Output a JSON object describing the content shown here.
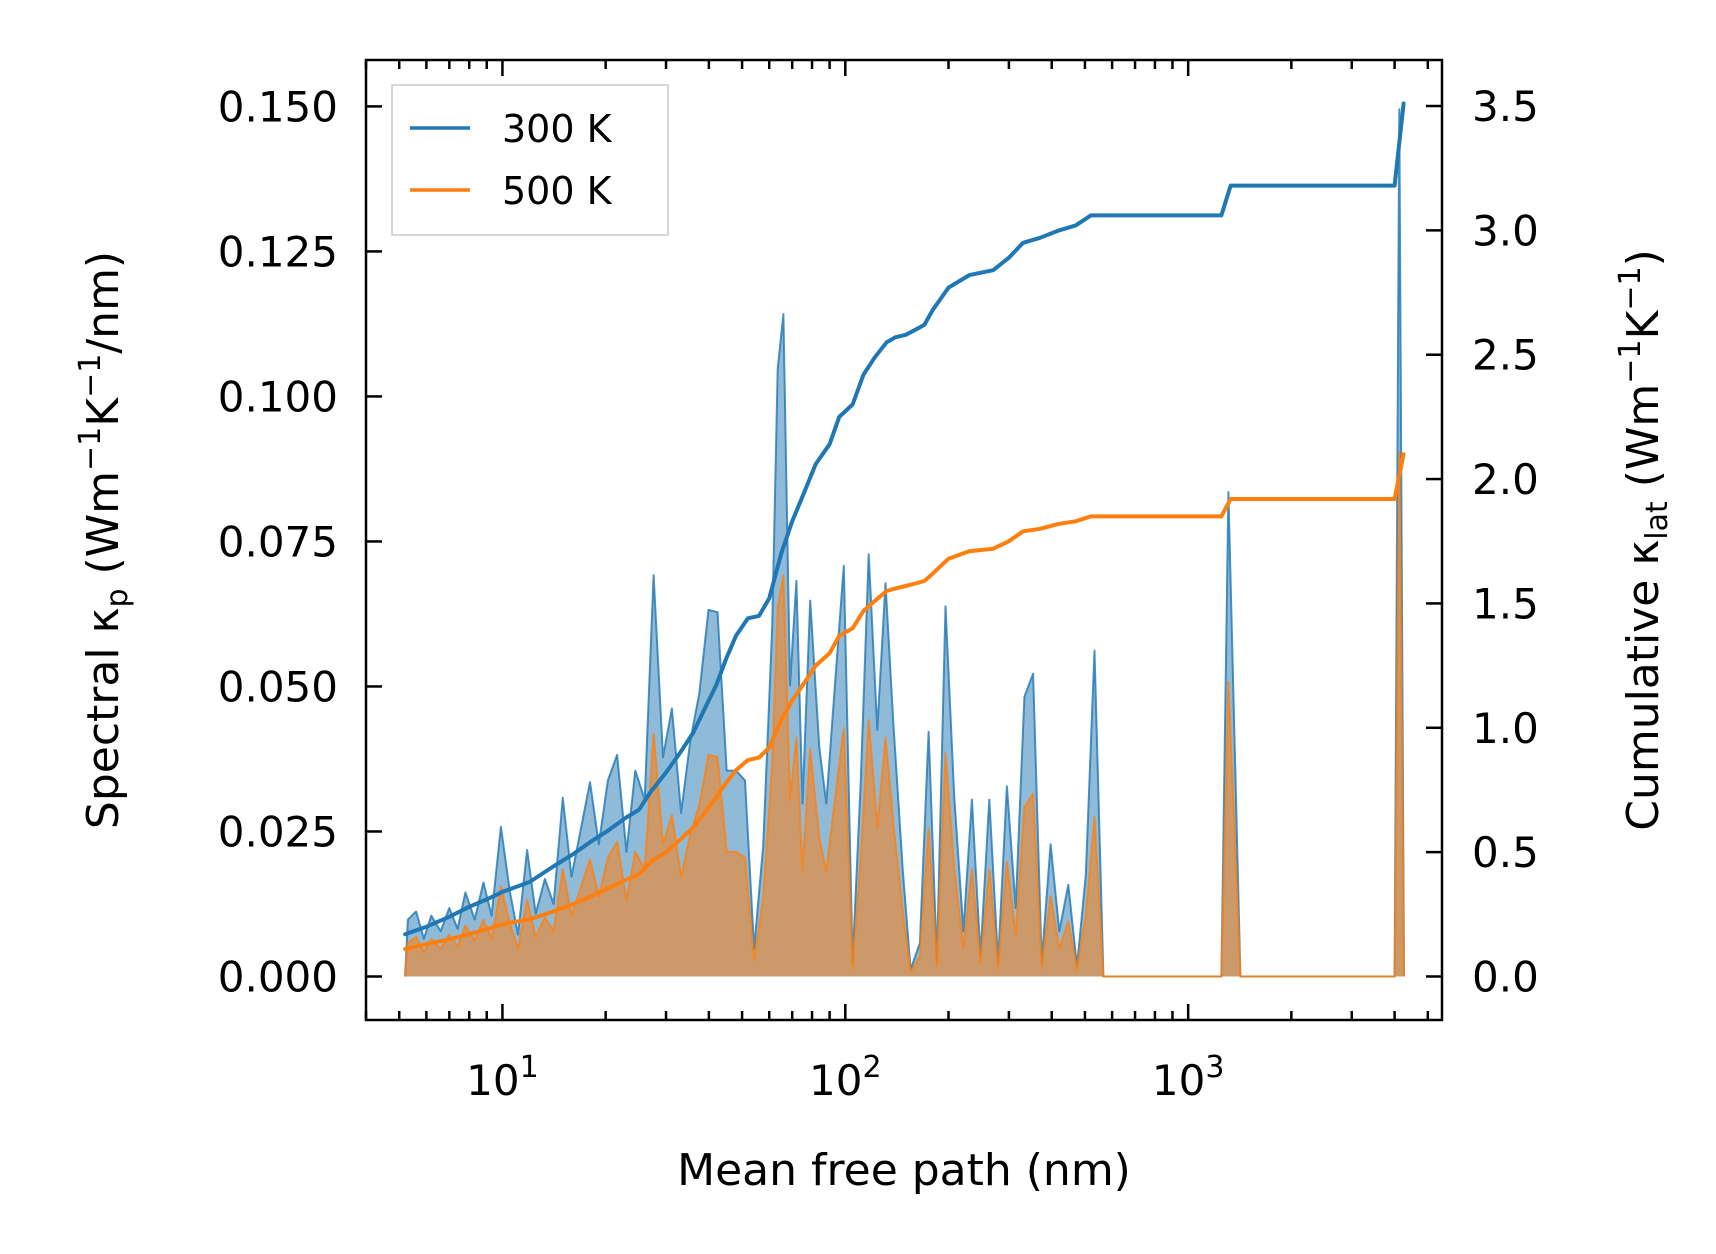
{
  "chart_data": {
    "type": "line+area",
    "xscale": "log",
    "xlim": [
      4.0,
      5500
    ],
    "ylim_left": [
      -0.0075,
      0.158
    ],
    "ylim_right": [
      -0.175,
      3.685
    ],
    "xlabel": "Mean free path (nm)",
    "ylabel_left": {
      "prefix": "Spectral κ",
      "sub": "p",
      "suffix": " (Wm",
      "sup1": "−1",
      "mid": "K",
      "sup2": "−1",
      "end": "/nm)"
    },
    "ylabel_right": {
      "prefix": "Cumulative κ",
      "sub": "lat",
      "suffix": " (Wm",
      "sup1": "−1",
      "mid": "K",
      "sup2": "−1",
      "end": ")"
    },
    "x_ticks": [
      {
        "value": 10,
        "base": "10",
        "exp": "1"
      },
      {
        "value": 100,
        "base": "10",
        "exp": "2"
      },
      {
        "value": 1000,
        "base": "10",
        "exp": "3"
      }
    ],
    "y_left_ticks": [
      {
        "value": 0.0,
        "label": "0.000"
      },
      {
        "value": 0.025,
        "label": "0.025"
      },
      {
        "value": 0.05,
        "label": "0.050"
      },
      {
        "value": 0.075,
        "label": "0.075"
      },
      {
        "value": 0.1,
        "label": "0.100"
      },
      {
        "value": 0.125,
        "label": "0.125"
      },
      {
        "value": 0.15,
        "label": "0.150"
      }
    ],
    "y_right_ticks": [
      {
        "value": 0.0,
        "label": "0.0"
      },
      {
        "value": 0.5,
        "label": "0.5"
      },
      {
        "value": 1.0,
        "label": "1.0"
      },
      {
        "value": 1.5,
        "label": "1.5"
      },
      {
        "value": 2.0,
        "label": "2.0"
      },
      {
        "value": 2.5,
        "label": "2.5"
      },
      {
        "value": 3.0,
        "label": "3.0"
      },
      {
        "value": 3.5,
        "label": "3.5"
      }
    ],
    "legend": {
      "position": "top-left",
      "entries": [
        "300 K",
        "500 K"
      ]
    },
    "series": [
      {
        "name": "300 K",
        "color": "#1f77b4",
        "fill": "#1f77b4",
        "spectral": [
          [
            5.2,
            0.0
          ],
          [
            5.3,
            0.0098
          ],
          [
            5.6,
            0.0112
          ],
          [
            5.9,
            0.0065
          ],
          [
            6.2,
            0.0105
          ],
          [
            6.6,
            0.0078
          ],
          [
            7.0,
            0.0118
          ],
          [
            7.4,
            0.0082
          ],
          [
            7.8,
            0.0145
          ],
          [
            8.3,
            0.0098
          ],
          [
            8.8,
            0.0162
          ],
          [
            9.3,
            0.0105
          ],
          [
            9.9,
            0.0258
          ],
          [
            10.5,
            0.0148
          ],
          [
            11.1,
            0.0072
          ],
          [
            11.8,
            0.0218
          ],
          [
            12.5,
            0.0108
          ],
          [
            13.3,
            0.0168
          ],
          [
            14.1,
            0.0125
          ],
          [
            15.0,
            0.0308
          ],
          [
            15.9,
            0.0172
          ],
          [
            16.9,
            0.0252
          ],
          [
            18.0,
            0.0335
          ],
          [
            19.1,
            0.0228
          ],
          [
            20.3,
            0.0338
          ],
          [
            21.6,
            0.0382
          ],
          [
            23.0,
            0.0215
          ],
          [
            24.4,
            0.0355
          ],
          [
            26.0,
            0.0305
          ],
          [
            27.6,
            0.0692
          ],
          [
            29.4,
            0.0378
          ],
          [
            31.2,
            0.0462
          ],
          [
            33.2,
            0.0282
          ],
          [
            35.3,
            0.0405
          ],
          [
            37.5,
            0.0488
          ],
          [
            39.9,
            0.0632
          ],
          [
            42.4,
            0.0628
          ],
          [
            45.1,
            0.0355
          ],
          [
            48.0,
            0.0355
          ],
          [
            51.0,
            0.0338
          ],
          [
            54.2,
            0.0048
          ],
          [
            57.6,
            0.0225
          ],
          [
            61.2,
            0.0602
          ],
          [
            63.5,
            0.1048
          ],
          [
            66.0,
            0.1142
          ],
          [
            69.0,
            0.0502
          ],
          [
            72.0,
            0.0682
          ],
          [
            75.0,
            0.0298
          ],
          [
            79.0,
            0.0648
          ],
          [
            84.0,
            0.0395
          ],
          [
            88.0,
            0.0298
          ],
          [
            93.0,
            0.0492
          ],
          [
            99.0,
            0.0708
          ],
          [
            105.0,
            0.0025
          ],
          [
            111.0,
            0.0338
          ],
          [
            117.0,
            0.0728
          ],
          [
            124.0,
            0.0425
          ],
          [
            131.0,
            0.0678
          ],
          [
            138.0,
            0.0438
          ],
          [
            147.0,
            0.0185
          ],
          [
            155.0,
            0.0012
          ],
          [
            165.0,
            0.0058
          ],
          [
            175.0,
            0.0422
          ],
          [
            185.0,
            0.0028
          ],
          [
            196.0,
            0.0638
          ],
          [
            208.0,
            0.0308
          ],
          [
            221.0,
            0.0078
          ],
          [
            234.0,
            0.0305
          ],
          [
            248.0,
            0.0035
          ],
          [
            263.0,
            0.0305
          ],
          [
            279.0,
            0.0025
          ],
          [
            296.0,
            0.0328
          ],
          [
            314.0,
            0.0118
          ],
          [
            333.0,
            0.0482
          ],
          [
            353.0,
            0.0522
          ],
          [
            374.0,
            0.0025
          ],
          [
            397.0,
            0.0228
          ],
          [
            421.0,
            0.0078
          ],
          [
            447.0,
            0.0158
          ],
          [
            474.0,
            0.0018
          ],
          [
            503.0,
            0.0175
          ],
          [
            533.0,
            0.0562
          ],
          [
            566.0,
            0.0
          ],
          [
            1250.0,
            0.0
          ],
          [
            1310.0,
            0.0835
          ],
          [
            1420.0,
            0.0
          ],
          [
            4000.0,
            0.0
          ],
          [
            4130.0,
            0.1495
          ],
          [
            4260.0,
            0.0
          ]
        ],
        "cumulative": [
          [
            5.2,
            0.17
          ],
          [
            6.0,
            0.2
          ],
          [
            7.0,
            0.24
          ],
          [
            8.0,
            0.28
          ],
          [
            9.0,
            0.31
          ],
          [
            10.0,
            0.34
          ],
          [
            12.0,
            0.38
          ],
          [
            14.0,
            0.44
          ],
          [
            16.0,
            0.49
          ],
          [
            18.0,
            0.54
          ],
          [
            20.0,
            0.58
          ],
          [
            23.0,
            0.64
          ],
          [
            25.0,
            0.67
          ],
          [
            27.0,
            0.74
          ],
          [
            30.0,
            0.82
          ],
          [
            33.0,
            0.9
          ],
          [
            36.0,
            0.98
          ],
          [
            39.0,
            1.08
          ],
          [
            42.0,
            1.17
          ],
          [
            45.0,
            1.28
          ],
          [
            48.0,
            1.37
          ],
          [
            52.0,
            1.44
          ],
          [
            56.0,
            1.45
          ],
          [
            60.0,
            1.52
          ],
          [
            65.0,
            1.7
          ],
          [
            70.0,
            1.83
          ],
          [
            75.0,
            1.93
          ],
          [
            82.0,
            2.06
          ],
          [
            90.0,
            2.14
          ],
          [
            96.0,
            2.25
          ],
          [
            105.0,
            2.3
          ],
          [
            113.0,
            2.42
          ],
          [
            122.0,
            2.49
          ],
          [
            132.0,
            2.55
          ],
          [
            140.0,
            2.57
          ],
          [
            150.0,
            2.58
          ],
          [
            160.0,
            2.6
          ],
          [
            170.0,
            2.62
          ],
          [
            180.0,
            2.68
          ],
          [
            200.0,
            2.77
          ],
          [
            230.0,
            2.82
          ],
          [
            270.0,
            2.84
          ],
          [
            300.0,
            2.89
          ],
          [
            330.0,
            2.95
          ],
          [
            370.0,
            2.97
          ],
          [
            420.0,
            3.0
          ],
          [
            470.0,
            3.02
          ],
          [
            520.0,
            3.06
          ],
          [
            600.0,
            3.06
          ],
          [
            1250.0,
            3.06
          ],
          [
            1330.0,
            3.18
          ],
          [
            1450.0,
            3.18
          ],
          [
            4000.0,
            3.18
          ],
          [
            4250.0,
            3.51
          ]
        ]
      },
      {
        "name": "500 K",
        "color": "#ff7f0e",
        "fill": "#ff7f0e",
        "spectral": [
          [
            5.2,
            0.0
          ],
          [
            5.3,
            0.0058
          ],
          [
            5.6,
            0.0068
          ],
          [
            5.9,
            0.0042
          ],
          [
            6.2,
            0.0065
          ],
          [
            6.6,
            0.0048
          ],
          [
            7.0,
            0.0072
          ],
          [
            7.4,
            0.0052
          ],
          [
            7.8,
            0.0088
          ],
          [
            8.3,
            0.0062
          ],
          [
            8.8,
            0.0098
          ],
          [
            9.3,
            0.0065
          ],
          [
            9.9,
            0.0155
          ],
          [
            10.5,
            0.0092
          ],
          [
            11.1,
            0.0048
          ],
          [
            11.8,
            0.0132
          ],
          [
            12.5,
            0.0068
          ],
          [
            13.3,
            0.0102
          ],
          [
            14.1,
            0.0078
          ],
          [
            15.0,
            0.0185
          ],
          [
            15.9,
            0.0105
          ],
          [
            16.9,
            0.0152
          ],
          [
            18.0,
            0.0202
          ],
          [
            19.1,
            0.0138
          ],
          [
            20.3,
            0.0205
          ],
          [
            21.6,
            0.0232
          ],
          [
            23.0,
            0.0132
          ],
          [
            24.4,
            0.0215
          ],
          [
            26.0,
            0.0185
          ],
          [
            27.6,
            0.0418
          ],
          [
            29.4,
            0.0228
          ],
          [
            31.2,
            0.0278
          ],
          [
            33.2,
            0.0172
          ],
          [
            35.3,
            0.0245
          ],
          [
            37.5,
            0.0295
          ],
          [
            39.9,
            0.0382
          ],
          [
            42.4,
            0.0378
          ],
          [
            45.1,
            0.0215
          ],
          [
            48.0,
            0.0215
          ],
          [
            51.0,
            0.0205
          ],
          [
            54.2,
            0.0028
          ],
          [
            57.6,
            0.0135
          ],
          [
            61.2,
            0.0365
          ],
          [
            63.5,
            0.0635
          ],
          [
            66.0,
            0.0692
          ],
          [
            69.0,
            0.0305
          ],
          [
            72.0,
            0.0412
          ],
          [
            75.0,
            0.0182
          ],
          [
            79.0,
            0.0392
          ],
          [
            84.0,
            0.0238
          ],
          [
            88.0,
            0.0182
          ],
          [
            93.0,
            0.0298
          ],
          [
            99.0,
            0.0428
          ],
          [
            105.0,
            0.0015
          ],
          [
            111.0,
            0.0205
          ],
          [
            117.0,
            0.0442
          ],
          [
            124.0,
            0.0258
          ],
          [
            131.0,
            0.0412
          ],
          [
            138.0,
            0.0265
          ],
          [
            147.0,
            0.0112
          ],
          [
            155.0,
            0.0008
          ],
          [
            165.0,
            0.0035
          ],
          [
            175.0,
            0.0255
          ],
          [
            185.0,
            0.0018
          ],
          [
            196.0,
            0.0385
          ],
          [
            208.0,
            0.0185
          ],
          [
            221.0,
            0.0048
          ],
          [
            234.0,
            0.0185
          ],
          [
            248.0,
            0.0022
          ],
          [
            263.0,
            0.0185
          ],
          [
            279.0,
            0.0015
          ],
          [
            296.0,
            0.0198
          ],
          [
            314.0,
            0.0072
          ],
          [
            333.0,
            0.0292
          ],
          [
            353.0,
            0.0315
          ],
          [
            374.0,
            0.0015
          ],
          [
            397.0,
            0.0138
          ],
          [
            421.0,
            0.0048
          ],
          [
            447.0,
            0.0095
          ],
          [
            474.0,
            0.0012
          ],
          [
            503.0,
            0.0105
          ],
          [
            533.0,
            0.0275
          ],
          [
            566.0,
            0.0
          ],
          [
            1250.0,
            0.0
          ],
          [
            1310.0,
            0.0508
          ],
          [
            1420.0,
            0.0
          ],
          [
            4000.0,
            0.0
          ],
          [
            4130.0,
            0.0905
          ],
          [
            4260.0,
            0.0
          ]
        ],
        "cumulative": [
          [
            5.2,
            0.11
          ],
          [
            6.0,
            0.13
          ],
          [
            7.0,
            0.15
          ],
          [
            8.0,
            0.17
          ],
          [
            9.0,
            0.19
          ],
          [
            10.0,
            0.21
          ],
          [
            12.0,
            0.23
          ],
          [
            14.0,
            0.26
          ],
          [
            16.0,
            0.29
          ],
          [
            18.0,
            0.32
          ],
          [
            20.0,
            0.35
          ],
          [
            23.0,
            0.39
          ],
          [
            25.0,
            0.41
          ],
          [
            27.0,
            0.46
          ],
          [
            30.0,
            0.5
          ],
          [
            33.0,
            0.55
          ],
          [
            36.0,
            0.6
          ],
          [
            39.0,
            0.66
          ],
          [
            42.0,
            0.72
          ],
          [
            45.0,
            0.78
          ],
          [
            48.0,
            0.83
          ],
          [
            52.0,
            0.87
          ],
          [
            56.0,
            0.88
          ],
          [
            60.0,
            0.92
          ],
          [
            65.0,
            1.03
          ],
          [
            70.0,
            1.11
          ],
          [
            75.0,
            1.17
          ],
          [
            82.0,
            1.25
          ],
          [
            90.0,
            1.3
          ],
          [
            96.0,
            1.37
          ],
          [
            105.0,
            1.4
          ],
          [
            113.0,
            1.47
          ],
          [
            122.0,
            1.51
          ],
          [
            132.0,
            1.55
          ],
          [
            140.0,
            1.56
          ],
          [
            150.0,
            1.57
          ],
          [
            160.0,
            1.58
          ],
          [
            170.0,
            1.59
          ],
          [
            180.0,
            1.62
          ],
          [
            200.0,
            1.68
          ],
          [
            230.0,
            1.71
          ],
          [
            270.0,
            1.72
          ],
          [
            300.0,
            1.75
          ],
          [
            330.0,
            1.79
          ],
          [
            370.0,
            1.8
          ],
          [
            420.0,
            1.82
          ],
          [
            470.0,
            1.83
          ],
          [
            520.0,
            1.85
          ],
          [
            600.0,
            1.85
          ],
          [
            1250.0,
            1.85
          ],
          [
            1330.0,
            1.92
          ],
          [
            1450.0,
            1.92
          ],
          [
            4000.0,
            1.92
          ],
          [
            4250.0,
            2.1
          ]
        ]
      }
    ]
  }
}
